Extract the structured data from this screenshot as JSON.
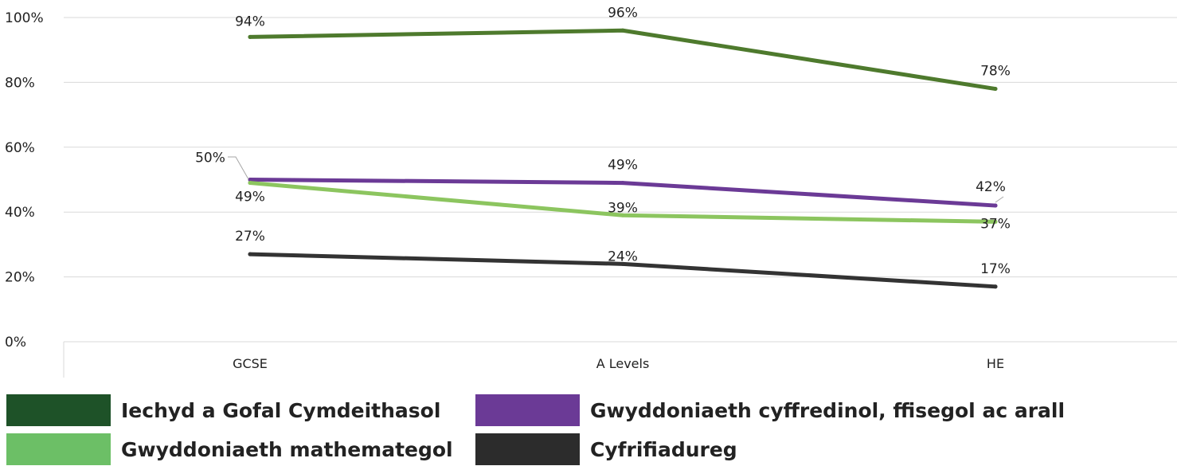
{
  "chart_data": {
    "type": "line",
    "categories": [
      "GCSE",
      "A Levels",
      "HE"
    ],
    "ylim": [
      0,
      100
    ],
    "yticks": [
      "0%",
      "20%",
      "40%",
      "60%",
      "80%",
      "100%"
    ],
    "ytick_values": [
      0,
      20,
      40,
      60,
      80,
      100
    ],
    "grid": true,
    "legend_position": "bottom",
    "series": [
      {
        "name": "Iechyd a Gofal Cymdeithasol",
        "values": [
          94,
          96,
          78
        ],
        "labels": [
          "94%",
          "96%",
          "78%"
        ],
        "color": "#4e7a2d",
        "legend_color": "#1e5228"
      },
      {
        "name": "Gwyddoniaeth cyffredinol, ffisegol ac arall",
        "values": [
          50,
          49,
          42
        ],
        "labels": [
          "50%",
          "49%",
          "42%"
        ],
        "color": "#6b3a96",
        "legend_color": "#6b3a96"
      },
      {
        "name": "Gwyddoniaeth mathemategol",
        "values": [
          49,
          39,
          37
        ],
        "labels": [
          "49%",
          "39%",
          "37%"
        ],
        "color": "#8cc55f",
        "legend_color": "#6cbf66"
      },
      {
        "name": "Cyfrifiadureg",
        "values": [
          27,
          24,
          17
        ],
        "labels": [
          "27%",
          "24%",
          "17%"
        ],
        "color": "#333333",
        "legend_color": "#2c2c2c"
      }
    ]
  }
}
